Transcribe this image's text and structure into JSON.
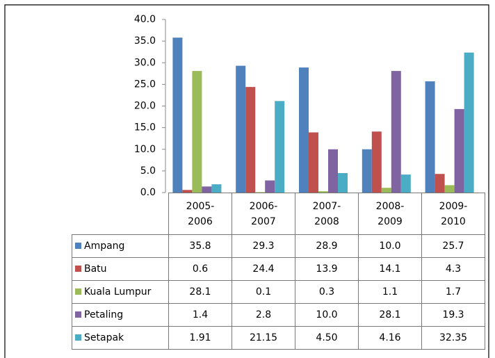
{
  "chart_data": {
    "type": "bar",
    "categories": [
      "2005-2006",
      "2006-2007",
      "2007-2008",
      "2008-2009",
      "2009-2010"
    ],
    "series": [
      {
        "name": "Ampang",
        "color": "#4f81bd",
        "values": [
          35.8,
          29.3,
          28.9,
          10.0,
          25.7
        ],
        "value_labels": [
          "35.8",
          "29.3",
          "28.9",
          "10.0",
          "25.7"
        ]
      },
      {
        "name": "Batu",
        "color": "#c0504d",
        "values": [
          0.6,
          24.4,
          13.9,
          14.1,
          4.3
        ],
        "value_labels": [
          "0.6",
          "24.4",
          "13.9",
          "14.1",
          "4.3"
        ]
      },
      {
        "name": "Kuala Lumpur",
        "color": "#9bbb59",
        "values": [
          28.1,
          0.1,
          0.3,
          1.1,
          1.7
        ],
        "value_labels": [
          "28.1",
          "0.1",
          "0.3",
          "1.1",
          "1.7"
        ]
      },
      {
        "name": "Petaling",
        "color": "#8064a2",
        "values": [
          1.4,
          2.8,
          10.0,
          28.1,
          19.3
        ],
        "value_labels": [
          "1.4",
          "2.8",
          "10.0",
          "28.1",
          "19.3"
        ]
      },
      {
        "name": "Setapak",
        "color": "#4bacc6",
        "values": [
          1.91,
          21.15,
          4.5,
          4.16,
          32.35
        ],
        "value_labels": [
          "1.91",
          "21.15",
          "4.50",
          "4.16",
          "32.35"
        ]
      }
    ],
    "ylim": [
      0,
      40
    ],
    "yticks": [
      {
        "value": 0,
        "label": "0.0"
      },
      {
        "value": 5,
        "label": "5.0"
      },
      {
        "value": 10,
        "label": "10.0"
      },
      {
        "value": 15,
        "label": "15.0"
      },
      {
        "value": 20,
        "label": "20.0"
      },
      {
        "value": 25,
        "label": "25.0"
      },
      {
        "value": 30,
        "label": "30.0"
      },
      {
        "value": 35,
        "label": "35.0"
      },
      {
        "value": 40,
        "label": "40.0"
      }
    ],
    "grid": false
  }
}
